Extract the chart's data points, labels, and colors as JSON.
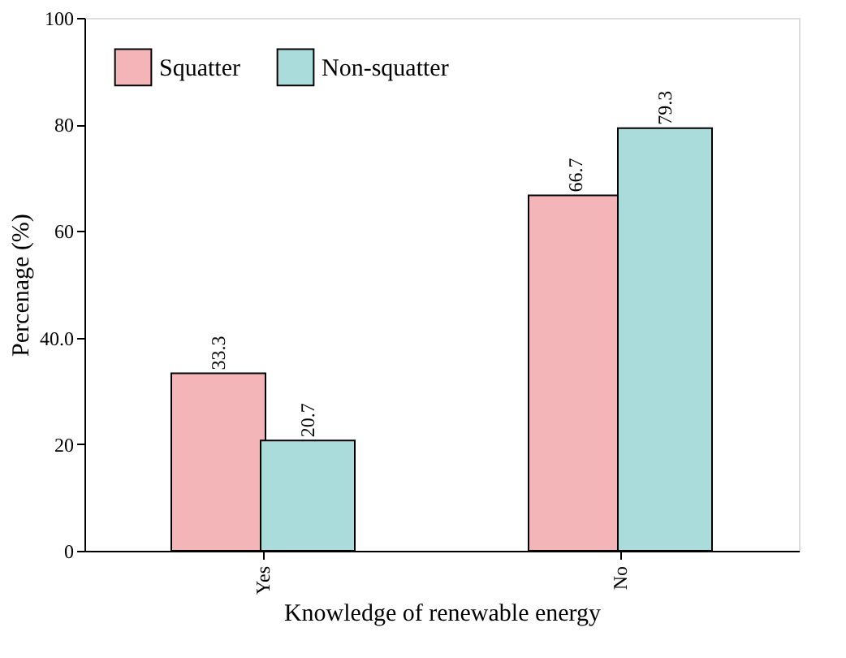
{
  "chart_data": {
    "type": "bar",
    "xlabel": "Knowledge of renewable energy",
    "ylabel": "Percenage (%)",
    "categories": [
      "Yes",
      "No"
    ],
    "series": [
      {
        "name": "Squatter",
        "color": "#f4b5b9",
        "values": [
          33.3,
          66.7
        ]
      },
      {
        "name": "Non-squatter",
        "color": "#a9dcdb",
        "values": [
          20.7,
          79.3
        ]
      }
    ],
    "ylim": [
      0,
      100
    ],
    "yticks": [
      0,
      20,
      {
        "value": 40,
        "label": "40.0"
      },
      60,
      80,
      100
    ],
    "data_labels": true,
    "legend": "top left",
    "grid": false
  }
}
